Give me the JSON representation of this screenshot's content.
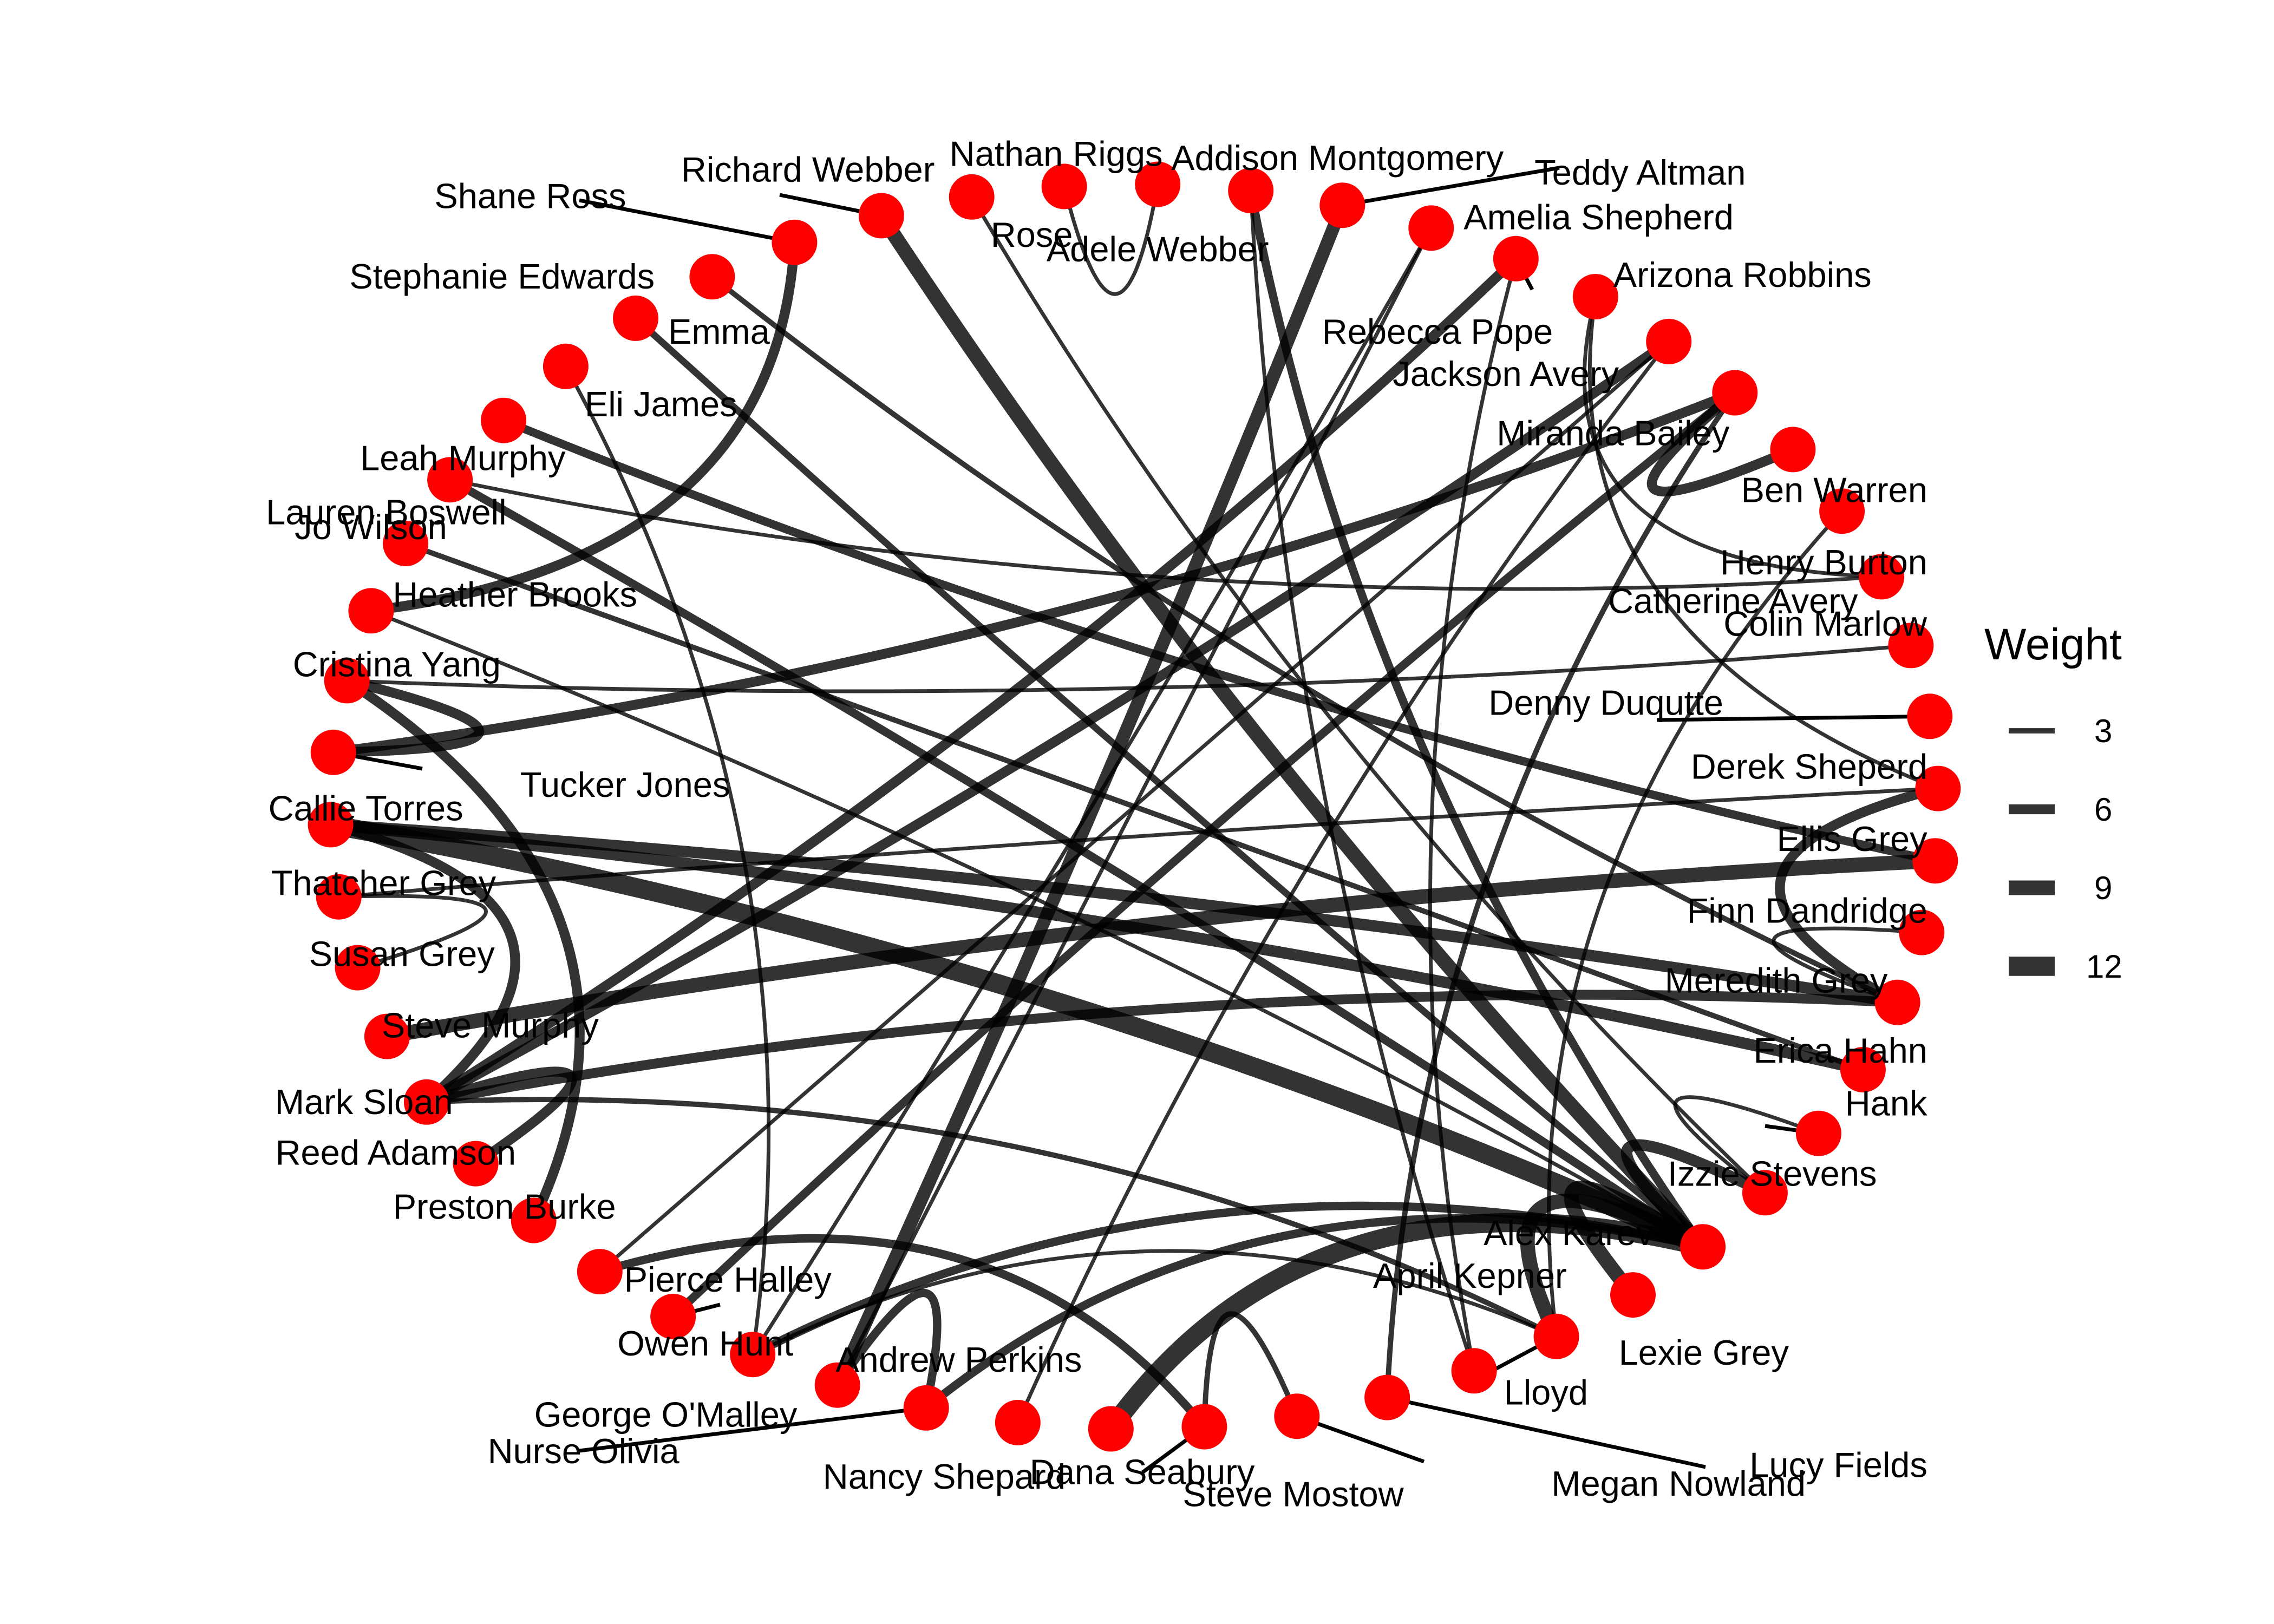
{
  "chart_data": {
    "type": "network",
    "layout": "circle",
    "legend": {
      "title": "Weight",
      "placement": "right",
      "entries": [
        {
          "label": "3",
          "weight": 3
        },
        {
          "label": "6",
          "weight": 6
        },
        {
          "label": "9",
          "weight": 9
        },
        {
          "label": "12",
          "weight": 12
        }
      ]
    },
    "style": {
      "node_color": "#ff0000",
      "edge_color": "#000000",
      "edge_opacity": 0.8
    },
    "nodes": [
      {
        "id": "nathan-riggs",
        "name": "Nathan Riggs"
      },
      {
        "id": "adele-webber",
        "name": "Adele Webber"
      },
      {
        "id": "addison-montgomery",
        "name": "Addison Montgomery"
      },
      {
        "id": "teddy-altman",
        "name": "Teddy Altman"
      },
      {
        "id": "amelia-shepherd",
        "name": "Amelia Shepherd"
      },
      {
        "id": "arizona-robbins",
        "name": "Arizona Robbins"
      },
      {
        "id": "rebecca-pope",
        "name": "Rebecca Pope"
      },
      {
        "id": "jackson-avery",
        "name": "Jackson Avery"
      },
      {
        "id": "miranda-bailey",
        "name": "Miranda Bailey"
      },
      {
        "id": "ben-warren",
        "name": "Ben Warren"
      },
      {
        "id": "henry-burton",
        "name": "Henry Burton"
      },
      {
        "id": "catherine-avery",
        "name": "Catherine Avery"
      },
      {
        "id": "colin-marlow",
        "name": "Colin Marlow"
      },
      {
        "id": "denny-duquette",
        "name": "Denny Duqutte"
      },
      {
        "id": "derek-sheperd",
        "name": "Derek Sheperd"
      },
      {
        "id": "ellis-grey",
        "name": "Ellis Grey"
      },
      {
        "id": "finn-dandridge",
        "name": "Finn Dandridge"
      },
      {
        "id": "meredith-grey",
        "name": "Meredith Grey"
      },
      {
        "id": "erica-hahn",
        "name": "Erica Hahn"
      },
      {
        "id": "hank",
        "name": "Hank"
      },
      {
        "id": "izzie-stevens",
        "name": "Izzie Stevens"
      },
      {
        "id": "alex-karev",
        "name": "Alex Karev"
      },
      {
        "id": "april-kepner",
        "name": "April Kepner"
      },
      {
        "id": "lexie-grey",
        "name": "Lexie Grey"
      },
      {
        "id": "lloyd",
        "name": "Lloyd"
      },
      {
        "id": "lucy-fields",
        "name": "Lucy Fields"
      },
      {
        "id": "megan-nowland",
        "name": "Megan Nowland"
      },
      {
        "id": "steve-mostow",
        "name": "Steve Mostow"
      },
      {
        "id": "dana-seabury",
        "name": "Dana Seabury"
      },
      {
        "id": "nancy-shepard",
        "name": "Nancy Shepard"
      },
      {
        "id": "nurse-olivia",
        "name": "Nurse Olivia"
      },
      {
        "id": "george-omalley",
        "name": "George O'Malley"
      },
      {
        "id": "owen-hunt",
        "name": "Owen Hunt"
      },
      {
        "id": "andrew-perkins",
        "name": "Andrew Perkins"
      },
      {
        "id": "pierce-halley",
        "name": "Pierce Halley"
      },
      {
        "id": "preston-burke",
        "name": "Preston Burke"
      },
      {
        "id": "reed-adamson",
        "name": "Reed Adamson"
      },
      {
        "id": "mark-sloan",
        "name": "Mark Sloan"
      },
      {
        "id": "steve-murphy",
        "name": "Steve Murphy"
      },
      {
        "id": "susan-grey",
        "name": "Susan Grey"
      },
      {
        "id": "thatcher-grey",
        "name": "Thatcher Grey"
      },
      {
        "id": "callie-torres",
        "name": "Callie Torres"
      },
      {
        "id": "tucker-jones",
        "name": "Tucker Jones"
      },
      {
        "id": "cristina-yang",
        "name": "Cristina Yang"
      },
      {
        "id": "heather-brooks",
        "name": "Heather Brooks"
      },
      {
        "id": "jo-wilson",
        "name": "Jo Wilson"
      },
      {
        "id": "lauren-boswell",
        "name": "Lauren Boswell"
      },
      {
        "id": "leah-murphy",
        "name": "Leah Murphy"
      },
      {
        "id": "eli-james",
        "name": "Eli James"
      },
      {
        "id": "emma",
        "name": "Emma"
      },
      {
        "id": "stephanie-edwards",
        "name": "Stephanie Edwards"
      },
      {
        "id": "shane-ross",
        "name": "Shane Ross"
      },
      {
        "id": "richard-webber",
        "name": "Richard Webber"
      },
      {
        "id": "rose",
        "name": "Rose"
      }
    ],
    "edges": [
      {
        "from": "callie-torres",
        "to": "alex-karev",
        "weight": 12
      },
      {
        "from": "dana-seabury",
        "to": "alex-karev",
        "weight": 12
      },
      {
        "from": "lexie-grey",
        "to": "alex-karev",
        "weight": 9
      },
      {
        "from": "april-kepner",
        "to": "alex-karev",
        "weight": 9
      },
      {
        "from": "steve-murphy",
        "to": "ellis-grey",
        "weight": 9
      },
      {
        "from": "richard-webber",
        "to": "alex-karev",
        "weight": 9
      },
      {
        "from": "teddy-altman",
        "to": "george-omalley",
        "weight": 8
      },
      {
        "from": "callie-torres",
        "to": "erica-hahn",
        "weight": 7
      },
      {
        "from": "callie-torres",
        "to": "meredith-grey",
        "weight": 7
      },
      {
        "from": "izzie-stevens",
        "to": "alex-karev",
        "weight": 7
      },
      {
        "from": "mark-sloan",
        "to": "jackson-avery",
        "weight": 6
      },
      {
        "from": "mark-sloan",
        "to": "arizona-robbins",
        "weight": 6
      },
      {
        "from": "mark-sloan",
        "to": "meredith-grey",
        "weight": 6
      },
      {
        "from": "mark-sloan",
        "to": "reed-adamson",
        "weight": 6
      },
      {
        "from": "callie-torres",
        "to": "mark-sloan",
        "weight": 6
      },
      {
        "from": "heather-brooks",
        "to": "shane-ross",
        "weight": 6
      },
      {
        "from": "cristina-yang",
        "to": "preston-burke",
        "weight": 6
      },
      {
        "from": "cristina-yang",
        "to": "tucker-jones",
        "weight": 6
      },
      {
        "from": "derek-sheperd",
        "to": "meredith-grey",
        "weight": 6
      },
      {
        "from": "miranda-bailey",
        "to": "ben-warren",
        "weight": 6
      },
      {
        "from": "miranda-bailey",
        "to": "tucker-jones",
        "weight": 6
      },
      {
        "from": "addison-montgomery",
        "to": "alex-karev",
        "weight": 5
      },
      {
        "from": "lauren-boswell",
        "to": "alex-karev",
        "weight": 5
      },
      {
        "from": "leah-murphy",
        "to": "ellis-grey",
        "weight": 5
      },
      {
        "from": "nurse-olivia",
        "to": "alex-karev",
        "weight": 5
      },
      {
        "from": "nurse-olivia",
        "to": "george-omalley",
        "weight": 5
      },
      {
        "from": "andrew-perkins",
        "to": "miranda-bailey",
        "weight": 5
      },
      {
        "from": "owen-hunt",
        "to": "alex-karev",
        "weight": 5
      },
      {
        "from": "megan-nowland",
        "to": "steve-mostow",
        "weight": 3
      },
      {
        "from": "steve-mostow",
        "to": "pierce-halley",
        "weight": 5
      },
      {
        "from": "eli-james",
        "to": "owen-hunt",
        "weight": 2
      },
      {
        "from": "emma",
        "to": "alex-karev",
        "weight": 4
      },
      {
        "from": "rose",
        "to": "izzie-stevens",
        "weight": 2
      },
      {
        "from": "nathan-riggs",
        "to": "adele-webber",
        "weight": 2
      },
      {
        "from": "amelia-shepherd",
        "to": "owen-hunt",
        "weight": 2
      },
      {
        "from": "rebecca-pope",
        "to": "catherine-avery",
        "weight": 2
      },
      {
        "from": "jackson-avery",
        "to": "nancy-shepard",
        "weight": 2
      },
      {
        "from": "catherine-avery",
        "to": "lauren-boswell",
        "weight": 2
      },
      {
        "from": "colin-marlow",
        "to": "cristina-yang",
        "weight": 2
      },
      {
        "from": "thatcher-grey",
        "to": "susan-grey",
        "weight": 2
      },
      {
        "from": "thatcher-grey",
        "to": "derek-sheperd",
        "weight": 2
      },
      {
        "from": "finn-dandridge",
        "to": "meredith-grey",
        "weight": 2
      },
      {
        "from": "hank",
        "to": "izzie-stevens",
        "weight": 2
      },
      {
        "from": "lloyd",
        "to": "addison-montgomery",
        "weight": 2
      },
      {
        "from": "lucy-fields",
        "to": "miranda-bailey",
        "weight": 3
      },
      {
        "from": "jo-wilson",
        "to": "erica-hahn",
        "weight": 3
      },
      {
        "from": "stephanie-edwards",
        "to": "meredith-grey",
        "weight": 3
      },
      {
        "from": "heather-brooks",
        "to": "alex-karev",
        "weight": 2
      },
      {
        "from": "george-omalley",
        "to": "amelia-shepherd",
        "weight": 2
      },
      {
        "from": "pierce-halley",
        "to": "jackson-avery",
        "weight": 2
      },
      {
        "from": "derek-sheperd",
        "to": "rebecca-pope",
        "weight": 2
      },
      {
        "from": "mark-sloan",
        "to": "lexie-grey",
        "weight": 3
      },
      {
        "from": "lexie-grey",
        "to": "henry-burton",
        "weight": 2
      },
      {
        "from": "owen-hunt",
        "to": "lexie-grey",
        "weight": 2
      },
      {
        "from": "arizona-robbins",
        "to": "lloyd",
        "weight": 2
      }
    ]
  }
}
